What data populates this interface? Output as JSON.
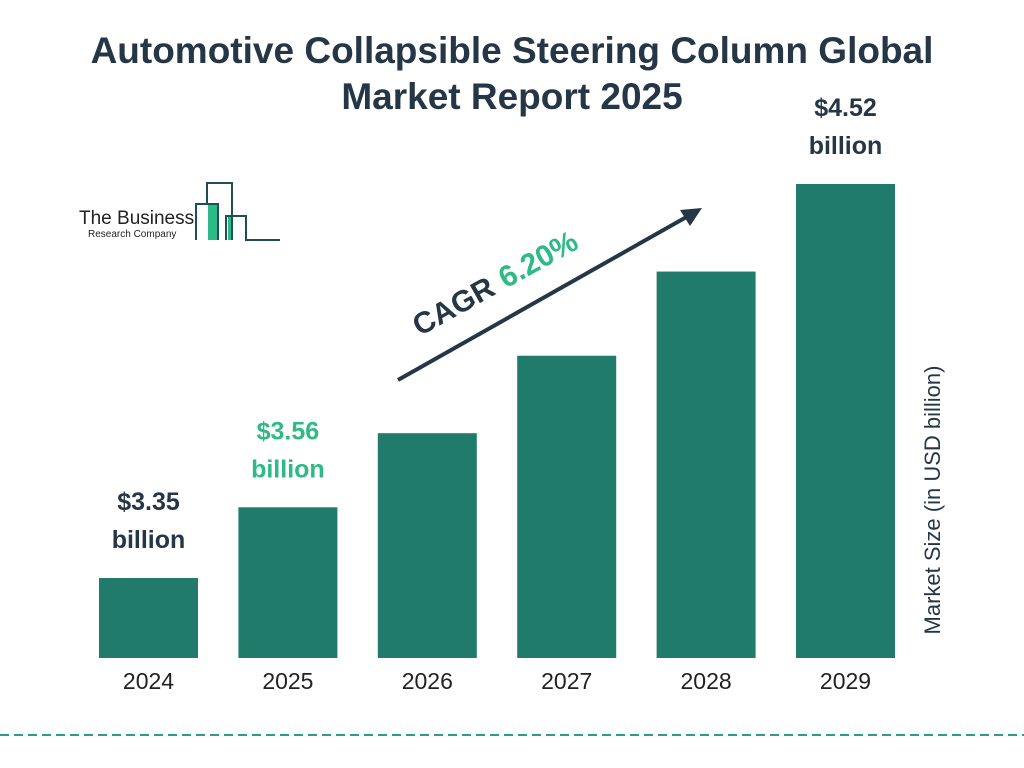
{
  "title_line1": "Automotive Collapsible Steering Column Global",
  "title_line2": "Market Report 2025",
  "logo": {
    "line1": "The Business",
    "line2": "Research Company"
  },
  "colors": {
    "bar": "#217b6b",
    "text": "#253746",
    "accent": "#2dba84",
    "dash": "#2a9d8f"
  },
  "cagr": {
    "label": "CAGR",
    "value": "6.20%"
  },
  "chart_data": {
    "type": "bar",
    "title": "Automotive Collapsible Steering Column Global Market Report 2025",
    "categories": [
      "2024",
      "2025",
      "2026",
      "2027",
      "2028",
      "2029"
    ],
    "values": [
      3.35,
      3.56,
      3.78,
      4.01,
      4.26,
      4.52
    ],
    "data_labels": [
      {
        "index": 0,
        "line1": "$3.35",
        "line2": "billion",
        "color": "#253746"
      },
      {
        "index": 1,
        "line1": "$3.56",
        "line2": "billion",
        "color": "#2dba84"
      },
      {
        "index": 5,
        "line1": "$4.52",
        "line2": "billion",
        "color": "#253746"
      }
    ],
    "xlabel": "",
    "ylabel": "Market Size (in USD billion)",
    "grid": false
  }
}
